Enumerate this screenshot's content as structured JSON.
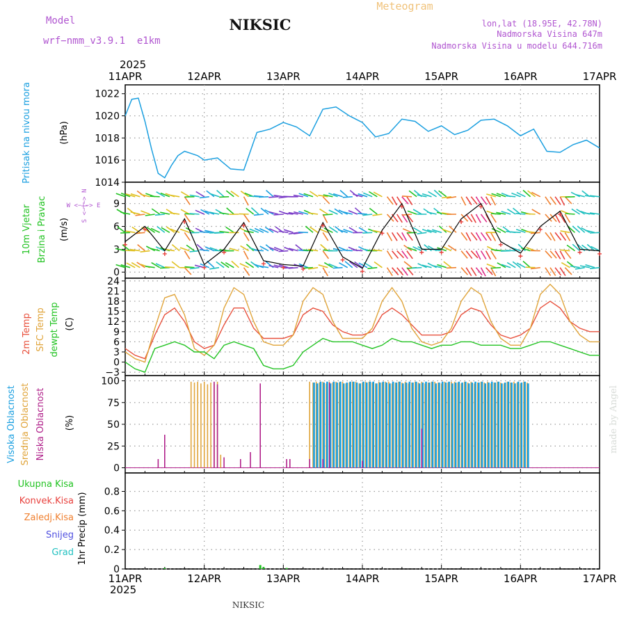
{
  "header": {
    "model_label": "Model",
    "model_value": "wrf−nmm_v3.9.1  e1km",
    "station": "NIKSIC",
    "product": "Meteogram",
    "lonlat": "lon,lat (18.95E, 42.78N)",
    "elevation": "Nadmorska Visina 647m",
    "model_elevation": "Nadmorska Visina u modelu 644.716m",
    "credit": "made by Angel",
    "footer_station": "NIKSIC"
  },
  "colors": {
    "pressure": "#1a9fe0",
    "temp2m": "#e8503c",
    "sfc": "#e0a43a",
    "dew": "#22c322",
    "high_cloud": "#1a9fe0",
    "mid_cloud": "#e0a43a",
    "low_cloud": "#b0208a",
    "title_purple": "#b055d0",
    "meteogram_orange": "#f0c27a",
    "ukupna": "#22c322",
    "konvek": "#e8403c",
    "zaledj": "#f08030",
    "snijeg": "#5050e0",
    "grad": "#20c0c0"
  },
  "x_axis": {
    "year": "2025",
    "dates": [
      "11APR",
      "12APR",
      "13APR",
      "14APR",
      "15APR",
      "16APR",
      "17APR"
    ]
  },
  "chart_data": [
    {
      "type": "line",
      "panel": "pressure",
      "ylabel": "Pritisak na nivou mora",
      "unit": "(hPa)",
      "ylim": [
        1014,
        1022.8
      ],
      "yticks": [
        1014,
        1016,
        1018,
        1020,
        1022
      ],
      "x_hours": [
        0,
        2,
        4,
        6,
        8,
        10,
        12,
        14,
        16,
        18,
        20,
        22,
        24,
        28,
        32,
        36,
        40,
        44,
        48,
        52,
        56,
        60,
        64,
        68,
        72,
        76,
        80,
        84,
        88,
        92,
        96,
        100,
        104,
        108,
        112,
        116,
        120,
        124,
        128,
        132,
        136,
        140,
        144
      ],
      "series": [
        {
          "values": [
            1020.0,
            1021.5,
            1021.6,
            1019.5,
            1017.0,
            1014.8,
            1014.4,
            1015.5,
            1016.4,
            1016.8,
            1016.6,
            1016.4,
            1016.0,
            1016.2,
            1015.2,
            1015.1,
            1018.5,
            1018.8,
            1019.4,
            1019.0,
            1018.2,
            1020.6,
            1020.8,
            1020.0,
            1019.4,
            1018.1,
            1018.4,
            1019.7,
            1019.5,
            1018.6,
            1019.1,
            1018.3,
            1018.7,
            1019.6,
            1019.7,
            1019.1,
            1018.2,
            1018.8,
            1016.8,
            1016.7,
            1017.4,
            1017.8,
            1017.1
          ]
        }
      ]
    },
    {
      "type": "line",
      "panel": "wind",
      "ylabel": "10m Vjetar Brzina i Pravac",
      "unit": "(m/s)",
      "compass": "W <−|−> E",
      "compass_v": "S <−|−> N",
      "ylim": [
        -0.8,
        11.8
      ],
      "yticks": [
        0,
        3,
        6,
        9
      ],
      "x_hours": [
        0,
        6,
        12,
        18,
        24,
        30,
        36,
        42,
        48,
        54,
        60,
        66,
        72,
        78,
        84,
        90,
        96,
        102,
        108,
        114,
        120,
        126,
        132,
        138,
        144
      ],
      "series": [
        {
          "values": [
            4,
            6,
            2.8,
            7,
            1,
            3,
            6.5,
            1.5,
            1,
            0.8,
            6.5,
            2,
            0.5,
            5.5,
            9,
            3,
            3,
            7,
            9,
            4,
            2.5,
            6,
            8,
            3,
            2.8
          ]
        }
      ]
    },
    {
      "type": "line",
      "panel": "temperature",
      "ylabel": "2m Temp / SFC Temp / dewpt Temp",
      "unit": "(C)",
      "ylim": [
        -4,
        24.8
      ],
      "yticks": [
        -3,
        0,
        3,
        6,
        9,
        12,
        15,
        18,
        21,
        24
      ],
      "x_hours": [
        0,
        3,
        6,
        9,
        12,
        15,
        18,
        21,
        24,
        27,
        30,
        33,
        36,
        39,
        42,
        45,
        48,
        51,
        54,
        57,
        60,
        63,
        66,
        69,
        72,
        75,
        78,
        81,
        84,
        87,
        90,
        93,
        96,
        99,
        102,
        105,
        108,
        111,
        114,
        117,
        120,
        123,
        126,
        129,
        132,
        135,
        138,
        141,
        144
      ],
      "series": [
        {
          "name": "2m Temp",
          "values": [
            4,
            2,
            1,
            8,
            14,
            16,
            12,
            6,
            4,
            5,
            11,
            16,
            16,
            10,
            7,
            7,
            7,
            8,
            14,
            16,
            15,
            11,
            9,
            8,
            8,
            9,
            14,
            16,
            14,
            11,
            8,
            8,
            8,
            9,
            14,
            16,
            15,
            11,
            8,
            7,
            8,
            10,
            16,
            18,
            16,
            12,
            10,
            9,
            9
          ]
        },
        {
          "name": "SFC Temp",
          "values": [
            3,
            1,
            0,
            10,
            19,
            20,
            14,
            4,
            2,
            5,
            16,
            22,
            20,
            12,
            6,
            5,
            5,
            8,
            18,
            22,
            20,
            12,
            7,
            7,
            7,
            10,
            18,
            22,
            18,
            10,
            6,
            5,
            6,
            10,
            18,
            22,
            20,
            12,
            7,
            5,
            5,
            10,
            20,
            23,
            20,
            12,
            8,
            6,
            6
          ]
        },
        {
          "name": "dewpt Temp",
          "values": [
            0,
            -2,
            -3,
            4,
            5,
            6,
            5,
            3,
            3,
            1,
            5,
            6,
            5,
            4,
            -1,
            -2,
            -2,
            -1,
            3,
            5,
            7,
            6,
            6,
            6,
            5,
            4,
            5,
            7,
            6,
            6,
            5,
            4,
            5,
            5,
            6,
            6,
            5,
            5,
            5,
            4,
            4,
            5,
            6,
            6,
            5,
            4,
            3,
            2,
            2
          ]
        }
      ]
    },
    {
      "type": "bar",
      "panel": "cloud",
      "ylabel": "Visoka Oblacnost / Srednja Oblacnost / Niska Oblacnost",
      "unit": "(%)",
      "ylim": [
        -6,
        106
      ],
      "yticks": [
        0,
        25,
        50,
        75,
        100
      ],
      "series": [
        {
          "name": "Niska Oblacnost",
          "x_hours": [
            10,
            12,
            27,
            28,
            30,
            35,
            38,
            41,
            49,
            50,
            56,
            60,
            62,
            72,
            90
          ],
          "values": [
            10,
            38,
            99,
            96,
            12,
            10,
            18,
            97,
            10,
            10,
            10,
            10,
            98,
            8,
            45
          ]
        },
        {
          "name": "Srednja Oblacnost",
          "x_hours": [
            20,
            21,
            22,
            23,
            24,
            25,
            26,
            27,
            28,
            29,
            56,
            57,
            58,
            59,
            60,
            61,
            62,
            63,
            64,
            65,
            66,
            67,
            68,
            69,
            70,
            71,
            72,
            73,
            74,
            75,
            76,
            77,
            78,
            79,
            80,
            81,
            82,
            83,
            84,
            85,
            86,
            87,
            88,
            89,
            90,
            91,
            92,
            93,
            94,
            95,
            96,
            97,
            98,
            99,
            100,
            101,
            102,
            103,
            104,
            105,
            106,
            107,
            108,
            109,
            110,
            111,
            112,
            113,
            114,
            115,
            116,
            117,
            118,
            119,
            120,
            121,
            122
          ],
          "values": [
            99,
            98,
            99,
            97,
            99,
            96,
            98,
            97,
            99,
            15,
            99,
            98,
            99,
            98,
            99,
            97,
            99,
            98,
            99,
            98,
            99,
            97,
            98,
            99,
            99,
            97,
            98,
            99,
            99,
            98,
            97,
            99,
            98,
            99,
            99,
            97,
            98,
            99,
            98,
            99,
            97,
            98,
            99,
            98,
            99,
            97,
            98,
            99,
            99,
            98,
            97,
            99,
            98,
            99,
            99,
            98,
            97,
            99,
            98,
            99,
            97,
            98,
            99,
            98,
            99,
            97,
            98,
            99,
            98,
            97,
            99,
            98,
            99,
            98,
            97,
            99,
            98
          ]
        },
        {
          "name": "Visoka Oblacnost",
          "x_hours": [
            57,
            58,
            59,
            60,
            61,
            62,
            63,
            64,
            65,
            66,
            67,
            68,
            69,
            70,
            71,
            72,
            73,
            74,
            75,
            76,
            77,
            78,
            79,
            80,
            81,
            82,
            83,
            84,
            85,
            86,
            87,
            88,
            89,
            90,
            91,
            92,
            93,
            94,
            95,
            96,
            97,
            98,
            99,
            100,
            101,
            102,
            103,
            104,
            105,
            106,
            107,
            108,
            109,
            110,
            111,
            112,
            113,
            114,
            115,
            116,
            117,
            118,
            119,
            120,
            121,
            122
          ],
          "values": [
            98,
            97,
            99,
            98,
            99,
            97,
            99,
            98,
            99,
            97,
            98,
            99,
            99,
            98,
            97,
            99,
            98,
            99,
            99,
            97,
            98,
            99,
            98,
            97,
            99,
            98,
            99,
            97,
            98,
            99,
            98,
            99,
            97,
            98,
            99,
            98,
            99,
            97,
            98,
            99,
            98,
            99,
            97,
            98,
            99,
            98,
            99,
            97,
            98,
            99,
            98,
            99,
            97,
            98,
            99,
            98,
            99,
            97,
            98,
            99,
            98,
            97,
            99,
            98,
            99,
            97
          ]
        }
      ]
    },
    {
      "type": "bar",
      "panel": "precip",
      "ylabel": "1hr Precip",
      "unit": "(mm)",
      "legend": [
        "Ukupna Kisa",
        "Konvek.Kisa",
        "Zaledj.Kisa",
        "Snijeg",
        "Grad"
      ],
      "ylim": [
        0,
        0.99
      ],
      "yticks": [
        0,
        0.2,
        0.4,
        0.6,
        0.8
      ],
      "series": [
        {
          "name": "Ukupna Kisa",
          "x_hours": [
            12,
            41,
            42,
            49
          ],
          "values": [
            0.01,
            0.04,
            0.02,
            0.01
          ]
        }
      ]
    }
  ]
}
